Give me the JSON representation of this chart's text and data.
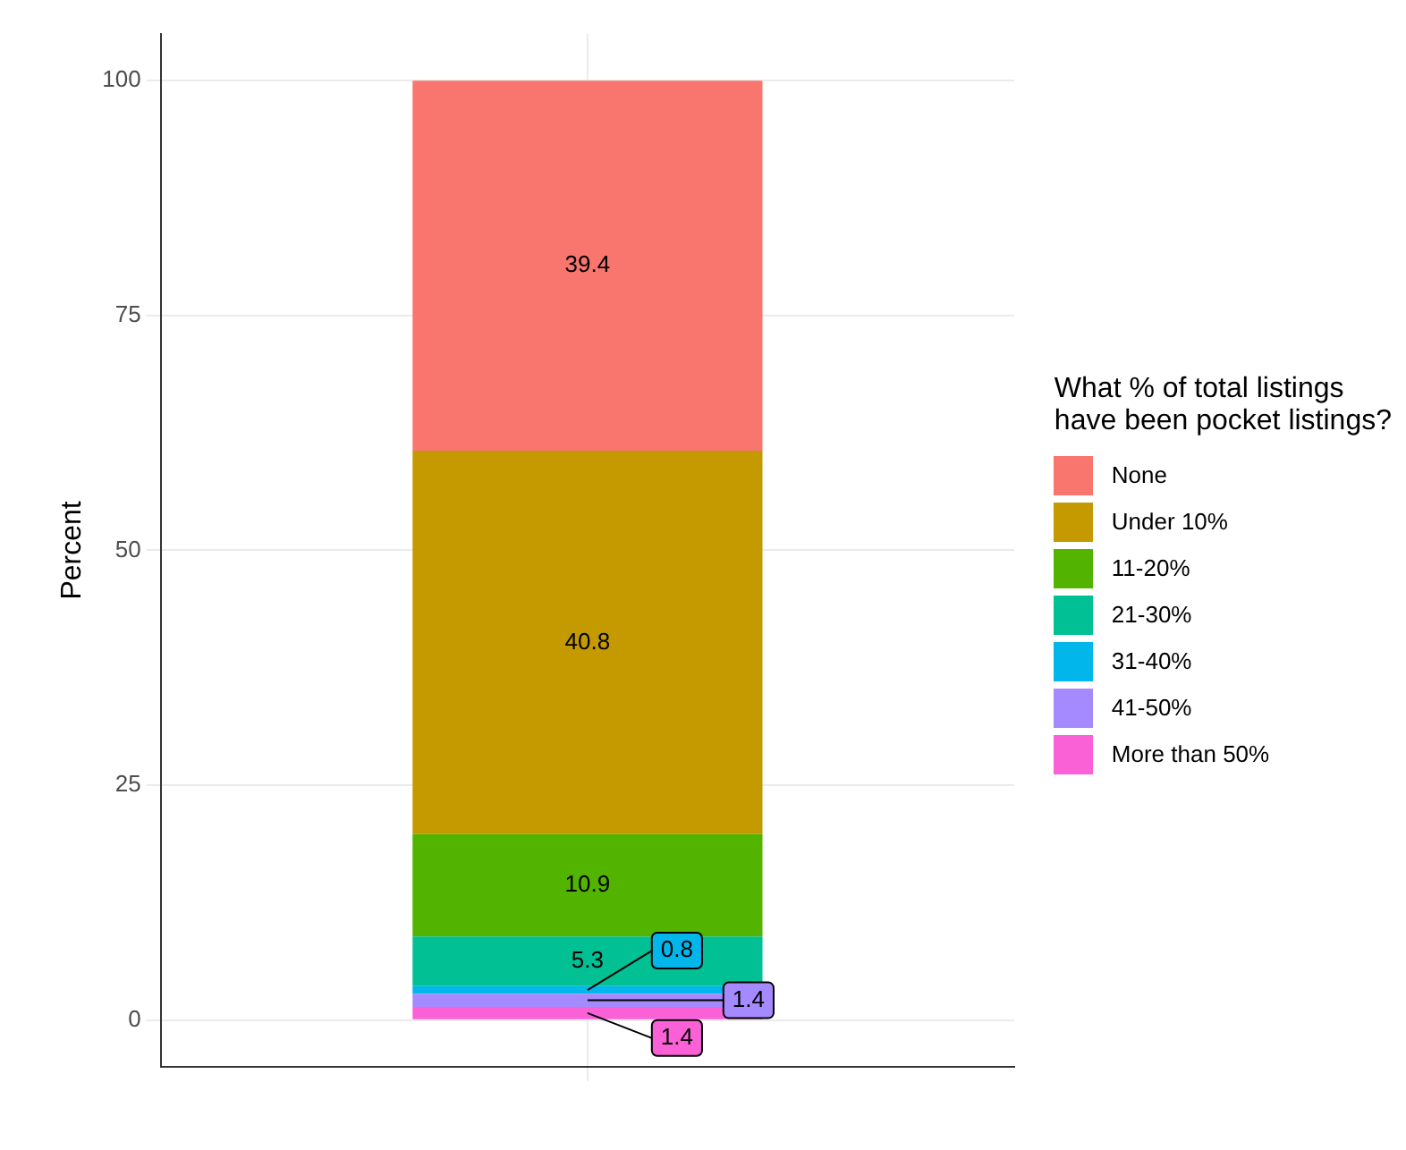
{
  "chart_data": {
    "type": "bar",
    "stacked": true,
    "categories": [
      null
    ],
    "ylabel": "Percent",
    "legend_title": "What % of total listings\nhave been pocket listings?",
    "legend": "right",
    "grid": true,
    "data_labels": true,
    "ylim": [
      -5,
      105
    ],
    "yticks": [
      0,
      25,
      50,
      75,
      100
    ],
    "series": [
      {
        "name": "More than 50%",
        "color": "#fb61d7",
        "values": [
          1.4
        ]
      },
      {
        "name": "41-50%",
        "color": "#a58aff",
        "values": [
          1.4
        ]
      },
      {
        "name": "31-40%",
        "color": "#00b6eb",
        "values": [
          0.8
        ]
      },
      {
        "name": "21-30%",
        "color": "#00c094",
        "values": [
          5.3
        ]
      },
      {
        "name": "11-20%",
        "color": "#53b400",
        "values": [
          10.9
        ]
      },
      {
        "name": "Under 10%",
        "color": "#c49a00",
        "values": [
          40.8
        ]
      },
      {
        "name": "None",
        "color": "#f8766d",
        "values": [
          39.4
        ]
      }
    ]
  }
}
